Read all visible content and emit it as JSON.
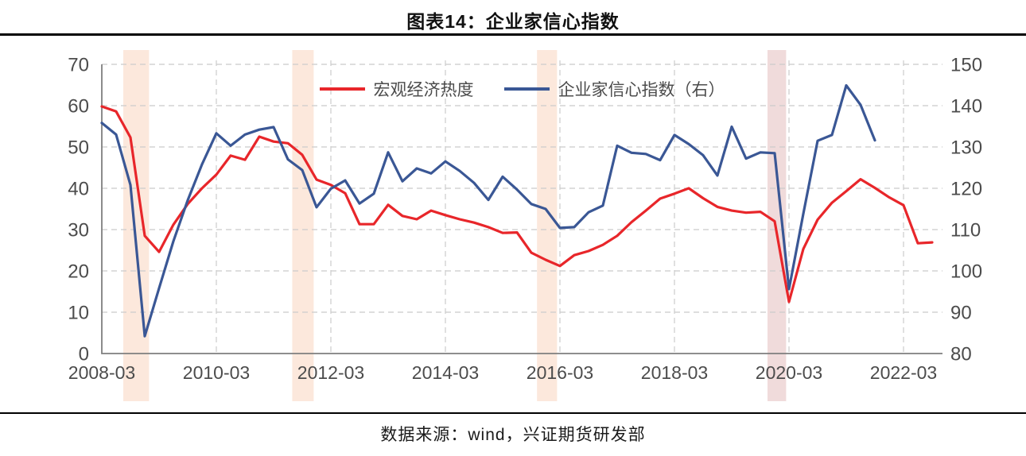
{
  "title": "图表14：企业家信心指数",
  "footer": {
    "source_label": "数据来源：wind，兴证期货研发部"
  },
  "legend": {
    "items": [
      {
        "label": "宏观经济热度",
        "color": "#e8262a"
      },
      {
        "label": "企业家信心指数（右）",
        "color": "#3a5795"
      }
    ]
  },
  "chart_data": {
    "type": "line",
    "title": "图表14：企业家信心指数",
    "frequency": "quarterly",
    "x_start": "2008-03",
    "x_tick_labels": [
      "2008-03",
      "2010-03",
      "2012-03",
      "2014-03",
      "2016-03",
      "2018-03",
      "2020-03",
      "2022-03"
    ],
    "left_axis": {
      "min": 0,
      "max": 70,
      "step": 10,
      "tick_labels": [
        "0",
        "10",
        "20",
        "30",
        "40",
        "50",
        "60",
        "70"
      ]
    },
    "right_axis": {
      "min": 80,
      "max": 150,
      "step": 10,
      "tick_labels": [
        "80",
        "90",
        "100",
        "110",
        "120",
        "130",
        "140",
        "150"
      ]
    },
    "grid": {
      "horizontal_dashed": true,
      "vertical_dashed": true,
      "color": "#cbcbcb",
      "axis_color": "#7f7f7f"
    },
    "legend_position": "top-center-inside",
    "series": [
      {
        "name": "宏观经济热度",
        "axis": "left",
        "color": "#e8262a",
        "start_quarter": "2008Q1",
        "end_quarter": "2022Q3",
        "values": [
          59.8,
          58.6,
          52.3,
          28.5,
          24.6,
          31.2,
          36.2,
          40.0,
          43.3,
          47.9,
          46.9,
          52.5,
          51.3,
          50.9,
          48.1,
          42.1,
          40.8,
          38.8,
          31.3,
          31.3,
          36.0,
          33.3,
          32.5,
          34.6,
          33.5,
          32.5,
          31.7,
          30.6,
          29.2,
          29.3,
          24.4,
          22.7,
          21.2,
          23.8,
          24.8,
          26.3,
          28.5,
          31.8,
          34.6,
          37.5,
          38.7,
          40.0,
          37.6,
          35.5,
          34.6,
          34.1,
          34.3,
          32.0,
          12.5,
          25.3,
          32.4,
          36.5,
          39.3,
          42.2,
          40.1,
          37.8,
          35.9,
          26.7,
          26.9
        ]
      },
      {
        "name": "企业家信心指数（右）",
        "axis": "right",
        "color": "#3a5795",
        "start_quarter": "2008Q1",
        "end_quarter": "2021Q3",
        "values": [
          135.8,
          133.0,
          120.8,
          84.2,
          95.8,
          107.2,
          117.1,
          125.8,
          133.3,
          130.3,
          133.0,
          134.2,
          134.8,
          127.0,
          124.4,
          115.4,
          119.9,
          121.9,
          116.3,
          118.7,
          128.7,
          121.7,
          124.8,
          123.6,
          126.5,
          124.2,
          121.3,
          117.2,
          122.8,
          119.7,
          116.2,
          115.0,
          110.4,
          110.6,
          114.2,
          115.8,
          130.3,
          128.6,
          128.3,
          126.8,
          132.9,
          130.7,
          128.0,
          123.1,
          134.9,
          127.2,
          128.7,
          128.5,
          95.6,
          113.8,
          131.5,
          132.9,
          144.9,
          140.2,
          131.6
        ]
      }
    ],
    "highlight_bands": [
      {
        "from_quarter_index": 1.5,
        "to_quarter_index": 3.3,
        "color": "#fce8dc"
      },
      {
        "from_quarter_index": 13.3,
        "to_quarter_index": 14.8,
        "color": "#fce8dc"
      },
      {
        "from_quarter_index": 30.4,
        "to_quarter_index": 31.8,
        "color": "#fce8dc"
      },
      {
        "from_quarter_index": 46.5,
        "to_quarter_index": 47.8,
        "color": "#f0dbdb"
      }
    ]
  }
}
